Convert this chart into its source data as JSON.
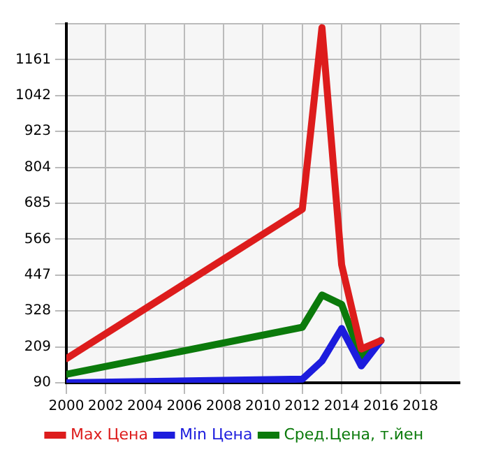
{
  "chart_data": {
    "type": "line",
    "x": [
      2000,
      2012,
      2013,
      2014,
      2015,
      2016
    ],
    "series": [
      {
        "name": "Max Цена",
        "color": "#dd1c1c",
        "values": [
          170,
          665,
          1267,
          481,
          202,
          230
        ]
      },
      {
        "name": "Min Цена",
        "color": "#1c1cdd",
        "values": [
          90,
          102,
          162,
          270,
          146,
          230
        ]
      },
      {
        "name": "Сред.Цена, т.йен",
        "color": "#0b7a0b",
        "values": [
          118,
          274,
          381,
          350,
          174,
          230
        ]
      }
    ],
    "xlim": [
      2000,
      2020
    ],
    "xticks": [
      2000,
      2002,
      2004,
      2006,
      2008,
      2010,
      2012,
      2014,
      2016,
      2018
    ],
    "ylim": [
      90,
      1280
    ],
    "yticks": [
      90,
      209,
      328,
      447,
      566,
      685,
      804,
      923,
      1042,
      1161,
      {
        "value": 1280,
        "label": null
      }
    ],
    "grid": true,
    "legend": "bottom",
    "marker": "none",
    "line_style": "solid"
  }
}
